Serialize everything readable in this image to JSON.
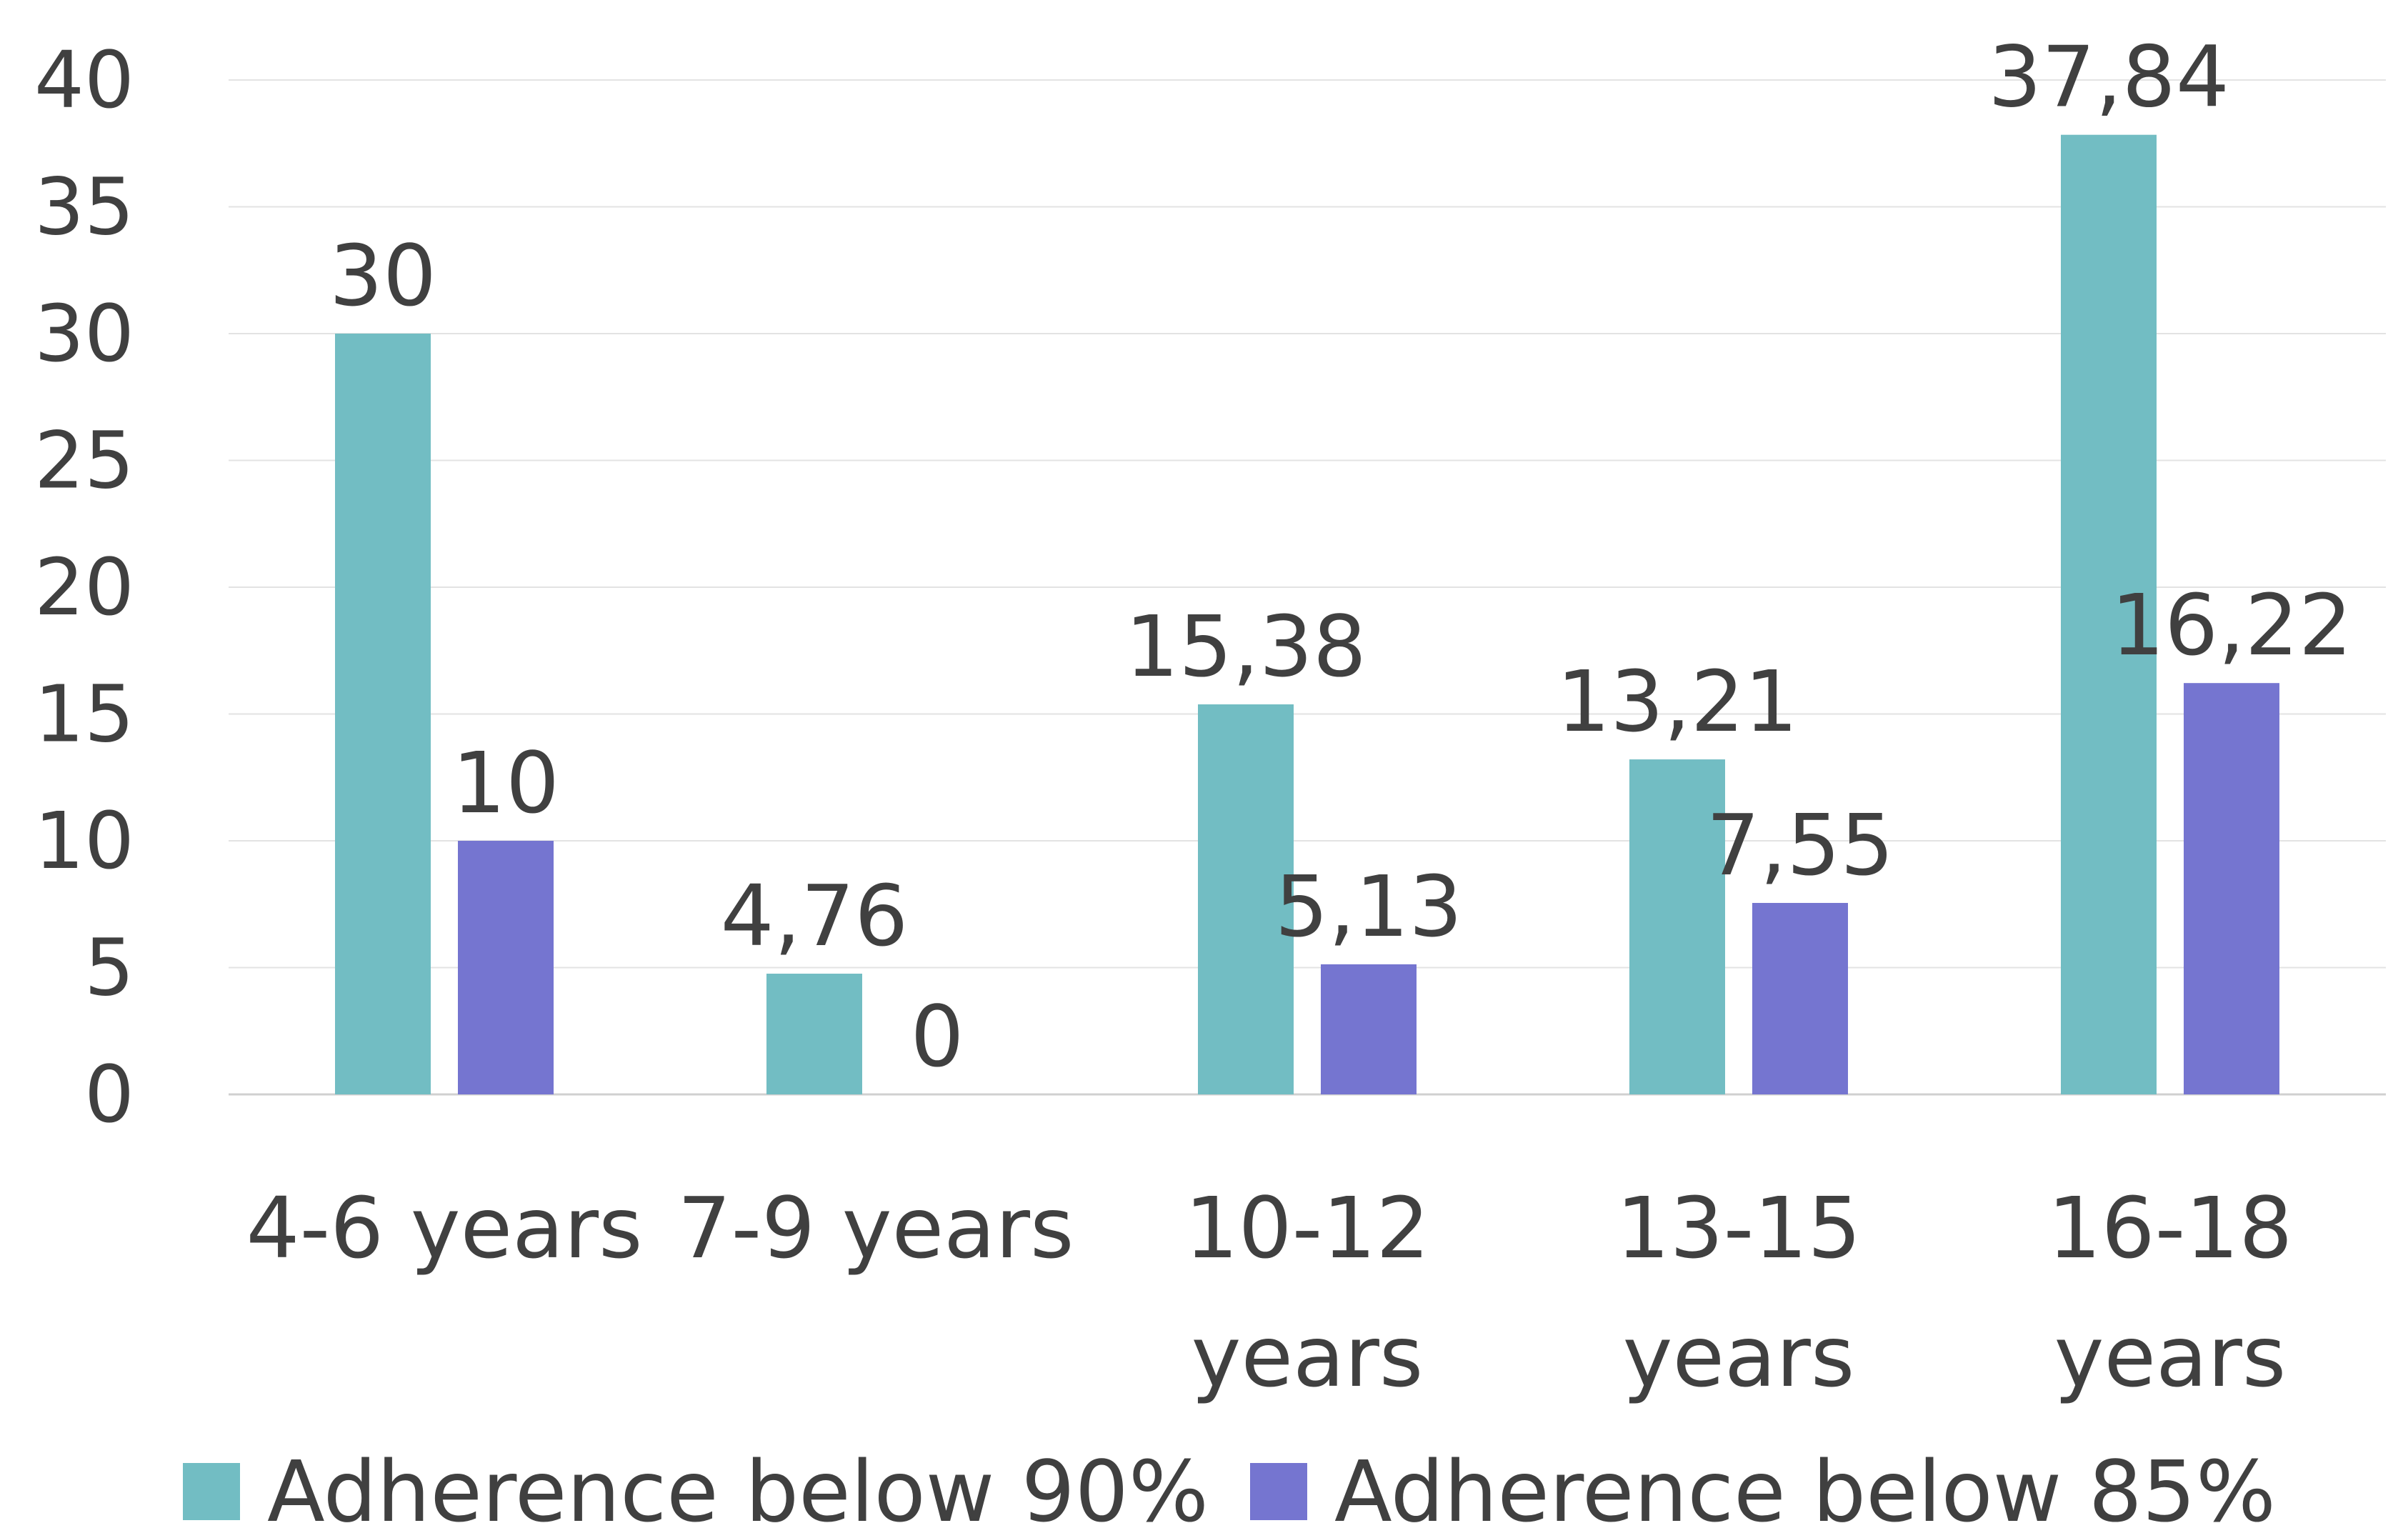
{
  "chart_data": {
    "type": "bar",
    "categories": [
      [
        "4-6 years"
      ],
      [
        "7-9 years"
      ],
      [
        "10-12",
        "years"
      ],
      [
        "13-15",
        "years"
      ],
      [
        "16-18",
        "years"
      ]
    ],
    "series": [
      {
        "name": "Adherence below 90%",
        "color": "#72BDC3",
        "values": [
          30,
          4.76,
          15.38,
          13.21,
          37.84
        ],
        "labels": [
          "30",
          "4,76",
          "15,38",
          "13,21",
          "37,84"
        ]
      },
      {
        "name": "Adherence below 85%",
        "color": "#7575D0",
        "values": [
          10,
          0,
          5.13,
          7.55,
          16.22
        ],
        "labels": [
          "10",
          "0",
          "5,13",
          "7,55",
          "16,22"
        ]
      }
    ],
    "ylim": [
      0,
      40
    ],
    "yticks": [
      0,
      5,
      10,
      15,
      20,
      25,
      30,
      35,
      40
    ],
    "grid": true,
    "legend_position": "bottom",
    "title": "",
    "xlabel": "",
    "ylabel": ""
  }
}
